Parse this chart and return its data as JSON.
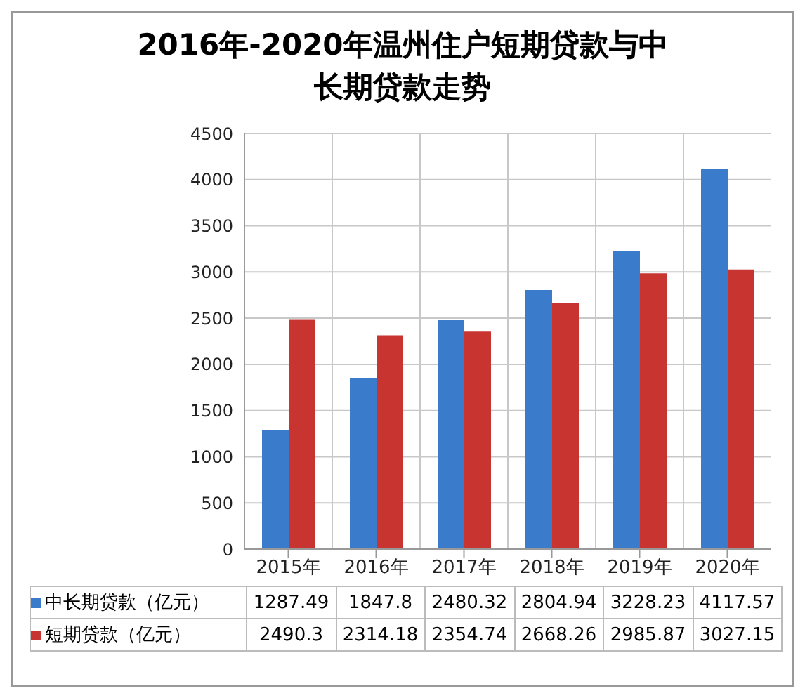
{
  "chart_data": {
    "type": "bar",
    "title": "2016年-2020年温州住户短期贷款与中长期贷款走势",
    "categories": [
      "2015年",
      "2016年",
      "2017年",
      "2018年",
      "2019年",
      "2020年"
    ],
    "series": [
      {
        "name": "中长期贷款（亿元）",
        "color": "#3a7bcc",
        "values": [
          1287.49,
          1847.8,
          2480.32,
          2804.94,
          3228.23,
          4117.57
        ]
      },
      {
        "name": "短期贷款（亿元）",
        "color": "#c83530",
        "values": [
          2490.3,
          2314.18,
          2354.74,
          2668.26,
          2985.87,
          3027.15
        ]
      }
    ],
    "ylim": [
      0,
      4500
    ],
    "yticks": [
      0,
      500,
      1000,
      1500,
      2000,
      2500,
      3000,
      3500,
      4000,
      4500
    ],
    "grid": true,
    "legend": "bottom",
    "data_labels": true
  }
}
